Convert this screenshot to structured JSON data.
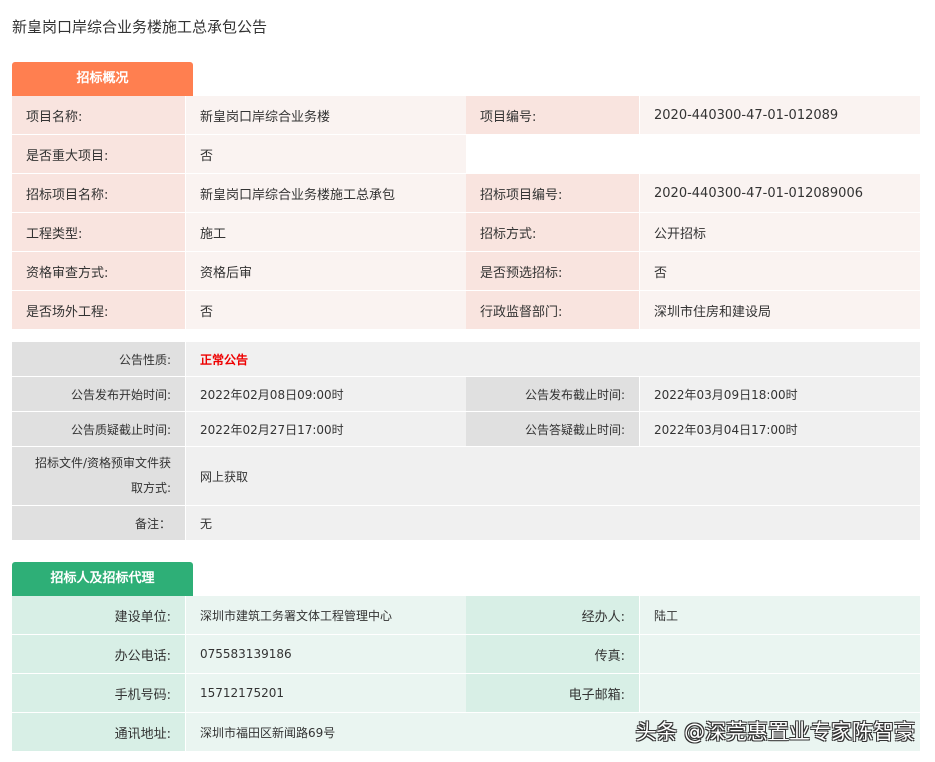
{
  "title": "新皇岗口岸综合业务楼施工总承包公告",
  "colors": {
    "overview_header": "#ff7f50",
    "tenderer_header": "#2eaf77",
    "notice_nature": "#e00000"
  },
  "overview": {
    "header": "招标概况",
    "rows": [
      [
        "项目名称:",
        "新皇岗口岸综合业务楼",
        "项目编号:",
        "2020-440300-47-01-012089"
      ],
      [
        "是否重大项目:",
        "否",
        "",
        ""
      ],
      [
        "招标项目名称:",
        "新皇岗口岸综合业务楼施工总承包",
        "招标项目编号:",
        "2020-440300-47-01-012089006"
      ],
      [
        "工程类型:",
        "施工",
        "招标方式:",
        "公开招标"
      ],
      [
        "资格审查方式:",
        "资格后审",
        "是否预选招标:",
        "否"
      ],
      [
        "是否场外工程:",
        "否",
        "行政监督部门:",
        "深圳市住房和建设局"
      ]
    ]
  },
  "notice": {
    "nature_label": "公告性质:",
    "nature_value": "正常公告",
    "rows": [
      [
        "公告发布开始时间:",
        "2022年02月08日09:00时",
        "公告发布截止时间:",
        "2022年03月09日18:00时"
      ],
      [
        "公告质疑截止时间:",
        "2022年02月27日17:00时",
        "公告答疑截止时间:",
        "2022年03月04日17:00时"
      ]
    ],
    "doc_label_1": "招标文件/资格预审文件获",
    "doc_label_2": "取方式:",
    "doc_value": "网上获取",
    "remark_label": "备注：",
    "remark_value": "无"
  },
  "tenderer": {
    "header": "招标人及招标代理",
    "rows": [
      [
        "建设单位:",
        "深圳市建筑工务署文体工程管理中心",
        "经办人:",
        "陆工"
      ],
      [
        "办公电话:",
        "075583139186",
        "传真:",
        ""
      ],
      [
        "手机号码:",
        "15712175201",
        "电子邮箱:",
        ""
      ],
      [
        "通讯地址:",
        "深圳市福田区新闻路69号",
        "",
        ""
      ]
    ]
  },
  "watermark": "头条 @深莞惠置业专家陈智豪"
}
